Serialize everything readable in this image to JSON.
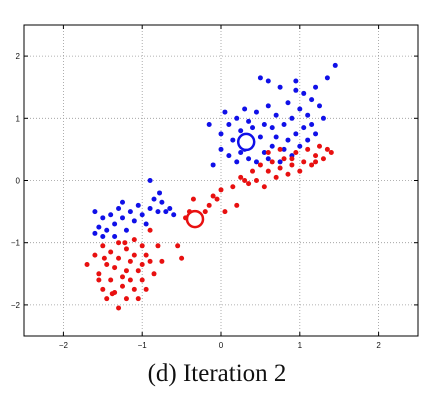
{
  "caption": "(d) Iteration 2",
  "chart_data": {
    "type": "scatter",
    "title": "",
    "xlabel": "",
    "ylabel": "",
    "xlim": [
      -2.5,
      2.5
    ],
    "ylim": [
      -2.5,
      2.5
    ],
    "x_ticks": [
      -2,
      -1,
      0,
      1,
      2
    ],
    "y_ticks": [
      -2,
      -1,
      0,
      1,
      2
    ],
    "x_tick_labels": [
      "−2",
      "−1",
      "0",
      "1",
      "2"
    ],
    "y_tick_labels": [
      "−2",
      "−1",
      "0",
      "1",
      "2"
    ],
    "grid": true,
    "colors": {
      "blue": "#1010e8",
      "red": "#e81010",
      "centroid": "#ffffff"
    },
    "series": [
      {
        "color": "blue",
        "points": [
          [
            -1.6,
            -0.5
          ],
          [
            -1.5,
            -0.6
          ],
          [
            -1.55,
            -0.75
          ],
          [
            -1.45,
            -0.8
          ],
          [
            -1.4,
            -0.55
          ],
          [
            -1.35,
            -0.7
          ],
          [
            -1.3,
            -0.45
          ],
          [
            -1.25,
            -0.6
          ],
          [
            -1.2,
            -0.8
          ],
          [
            -1.15,
            -0.5
          ],
          [
            -1.1,
            -0.65
          ],
          [
            -1.05,
            -0.4
          ],
          [
            -1.0,
            -0.55
          ],
          [
            -0.95,
            -0.7
          ],
          [
            -0.9,
            -0.45
          ],
          [
            -0.85,
            -0.3
          ],
          [
            -0.8,
            -0.5
          ],
          [
            -0.75,
            -0.35
          ],
          [
            -0.7,
            -0.5
          ],
          [
            -0.65,
            -0.45
          ],
          [
            -0.6,
            -0.55
          ],
          [
            -1.5,
            -0.9
          ],
          [
            -1.35,
            -0.9
          ],
          [
            -0.9,
            0.0
          ],
          [
            -1.6,
            -0.85
          ],
          [
            -1.25,
            -0.35
          ],
          [
            -0.78,
            -0.2
          ],
          [
            -0.1,
            0.25
          ],
          [
            -0.15,
            0.9
          ],
          [
            0.0,
            0.5
          ],
          [
            0.0,
            0.75
          ],
          [
            0.05,
            1.1
          ],
          [
            0.1,
            0.4
          ],
          [
            0.1,
            0.9
          ],
          [
            0.15,
            0.65
          ],
          [
            0.2,
            0.3
          ],
          [
            0.2,
            1.0
          ],
          [
            0.25,
            0.45
          ],
          [
            0.25,
            0.8
          ],
          [
            0.3,
            0.5
          ],
          [
            0.3,
            1.15
          ],
          [
            0.35,
            0.35
          ],
          [
            0.35,
            0.95
          ],
          [
            0.4,
            0.6
          ],
          [
            0.4,
            0.85
          ],
          [
            0.45,
            0.3
          ],
          [
            0.45,
            1.1
          ],
          [
            0.5,
            0.7
          ],
          [
            0.5,
            1.65
          ],
          [
            0.55,
            0.45
          ],
          [
            0.55,
            0.9
          ],
          [
            0.6,
            0.35
          ],
          [
            0.6,
            1.2
          ],
          [
            0.65,
            0.55
          ],
          [
            0.65,
            0.85
          ],
          [
            0.7,
            0.7
          ],
          [
            0.7,
            1.05
          ],
          [
            0.75,
            0.3
          ],
          [
            0.75,
            1.5
          ],
          [
            0.8,
            0.5
          ],
          [
            0.8,
            0.9
          ],
          [
            0.85,
            0.65
          ],
          [
            0.85,
            1.25
          ],
          [
            0.9,
            0.4
          ],
          [
            0.9,
            1.0
          ],
          [
            0.95,
            0.75
          ],
          [
            0.95,
            1.6
          ],
          [
            1.0,
            0.55
          ],
          [
            1.0,
            1.15
          ],
          [
            1.05,
            0.85
          ],
          [
            1.05,
            1.4
          ],
          [
            1.1,
            0.65
          ],
          [
            1.1,
            1.05
          ],
          [
            1.15,
            0.9
          ],
          [
            1.2,
            1.5
          ],
          [
            1.2,
            0.75
          ],
          [
            1.25,
            1.2
          ],
          [
            1.3,
            1.0
          ],
          [
            1.35,
            1.65
          ],
          [
            1.45,
            1.85
          ],
          [
            0.6,
            1.6
          ],
          [
            0.95,
            1.45
          ],
          [
            1.15,
            1.3
          ]
        ]
      },
      {
        "color": "red",
        "points": [
          [
            -1.7,
            -1.35
          ],
          [
            -1.6,
            -1.2
          ],
          [
            -1.55,
            -1.5
          ],
          [
            -1.5,
            -1.05
          ],
          [
            -1.5,
            -1.75
          ],
          [
            -1.45,
            -1.35
          ],
          [
            -1.45,
            -1.9
          ],
          [
            -1.4,
            -1.15
          ],
          [
            -1.4,
            -1.6
          ],
          [
            -1.35,
            -1.4
          ],
          [
            -1.35,
            -1.8
          ],
          [
            -1.3,
            -1.0
          ],
          [
            -1.3,
            -1.25
          ],
          [
            -1.3,
            -2.05
          ],
          [
            -1.25,
            -1.55
          ],
          [
            -1.25,
            -1.7
          ],
          [
            -1.2,
            -1.1
          ],
          [
            -1.2,
            -1.45
          ],
          [
            -1.2,
            -1.9
          ],
          [
            -1.15,
            -1.3
          ],
          [
            -1.15,
            -1.6
          ],
          [
            -1.1,
            -0.95
          ],
          [
            -1.1,
            -1.2
          ],
          [
            -1.1,
            -1.75
          ],
          [
            -1.05,
            -1.45
          ],
          [
            -1.05,
            -1.9
          ],
          [
            -1.0,
            -1.05
          ],
          [
            -1.0,
            -1.35
          ],
          [
            -1.0,
            -1.6
          ],
          [
            -0.95,
            -1.2
          ],
          [
            -0.95,
            -1.75
          ],
          [
            -0.9,
            -1.3
          ],
          [
            -0.9,
            -0.8
          ],
          [
            -0.85,
            -1.5
          ],
          [
            -0.8,
            -1.05
          ],
          [
            -0.75,
            -1.3
          ],
          [
            -1.55,
            -1.6
          ],
          [
            -1.48,
            -1.25
          ],
          [
            -1.38,
            -1.82
          ],
          [
            -1.22,
            -1.0
          ],
          [
            -0.55,
            -1.05
          ],
          [
            -0.5,
            -1.25
          ],
          [
            -0.45,
            -0.6
          ],
          [
            -0.4,
            -0.5
          ],
          [
            -0.4,
            -0.6
          ],
          [
            -0.35,
            -0.3
          ],
          [
            -0.2,
            -0.5
          ],
          [
            -0.15,
            -0.4
          ],
          [
            -0.1,
            -0.25
          ],
          [
            -0.05,
            -0.3
          ],
          [
            0.0,
            -0.15
          ],
          [
            0.05,
            -0.5
          ],
          [
            0.15,
            -0.1
          ],
          [
            0.2,
            -0.4
          ],
          [
            0.25,
            0.05
          ],
          [
            0.3,
            0.0
          ],
          [
            0.35,
            -0.05
          ],
          [
            0.4,
            0.15
          ],
          [
            0.45,
            0.0
          ],
          [
            0.5,
            0.25
          ],
          [
            0.55,
            -0.1
          ],
          [
            0.6,
            0.15
          ],
          [
            0.65,
            0.3
          ],
          [
            0.7,
            0.05
          ],
          [
            0.75,
            0.2
          ],
          [
            0.8,
            0.35
          ],
          [
            0.85,
            0.1
          ],
          [
            0.9,
            0.25
          ],
          [
            0.95,
            0.45
          ],
          [
            1.0,
            0.15
          ],
          [
            1.05,
            0.3
          ],
          [
            1.1,
            0.5
          ],
          [
            1.15,
            0.25
          ],
          [
            1.2,
            0.4
          ],
          [
            1.25,
            0.55
          ],
          [
            1.3,
            0.35
          ],
          [
            1.35,
            0.5
          ],
          [
            1.4,
            0.45
          ],
          [
            0.6,
            0.45
          ],
          [
            0.75,
            0.5
          ],
          [
            0.9,
            0.35
          ],
          [
            1.2,
            0.3
          ]
        ]
      }
    ],
    "centroids": [
      {
        "x": 0.32,
        "y": 0.62
      },
      {
        "x": -0.33,
        "y": -0.62
      }
    ]
  }
}
